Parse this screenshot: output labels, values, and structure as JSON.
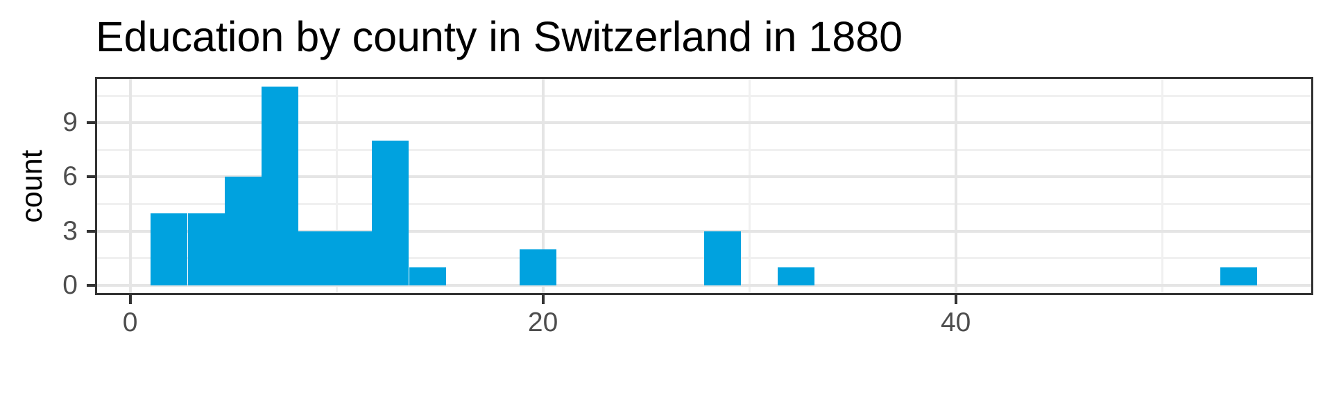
{
  "title": "Education by county in Switzerland in 1880",
  "chart_data": {
    "type": "bar",
    "subtype": "histogram",
    "title": "Education by county in Switzerland in 1880",
    "xlabel": "",
    "ylabel": "count",
    "x_domain": [
      -1.7,
      57.32
    ],
    "y_domain": [
      -0.55,
      11.55
    ],
    "x_major_ticks": [
      0,
      20,
      40
    ],
    "x_minor_gridlines": [
      10,
      30,
      50
    ],
    "y_major_ticks": [
      0,
      3,
      6,
      9
    ],
    "y_minor_gridlines": [
      1.5,
      4.5,
      7.5,
      10.5
    ],
    "binwidth": 1.787,
    "total_count": 47,
    "bins": [
      {
        "x0": 1.0,
        "x1": 2.787,
        "count": 4
      },
      {
        "x0": 2.787,
        "x1": 4.574,
        "count": 4
      },
      {
        "x0": 4.574,
        "x1": 6.361,
        "count": 6
      },
      {
        "x0": 6.361,
        "x1": 8.148,
        "count": 11
      },
      {
        "x0": 8.148,
        "x1": 9.935,
        "count": 3
      },
      {
        "x0": 9.935,
        "x1": 11.722,
        "count": 3
      },
      {
        "x0": 11.722,
        "x1": 13.509,
        "count": 8
      },
      {
        "x0": 13.509,
        "x1": 15.296,
        "count": 1
      },
      {
        "x0": 18.87,
        "x1": 20.657,
        "count": 2
      },
      {
        "x0": 27.805,
        "x1": 29.592,
        "count": 3
      },
      {
        "x0": 31.379,
        "x1": 33.166,
        "count": 1
      },
      {
        "x0": 52.823,
        "x1": 54.61,
        "count": 1
      }
    ],
    "legend": "none",
    "grid": true,
    "colors": {
      "bar_fill": "#00A2DF",
      "panel_border": "#333333",
      "grid_major": "#E5E5E5",
      "grid_minor": "#F0F0F0",
      "tick_mark": "#333333",
      "tick_label": "#4D4D4D",
      "title": "#000000",
      "axis_title": "#000000",
      "background": "#FFFFFF"
    }
  }
}
